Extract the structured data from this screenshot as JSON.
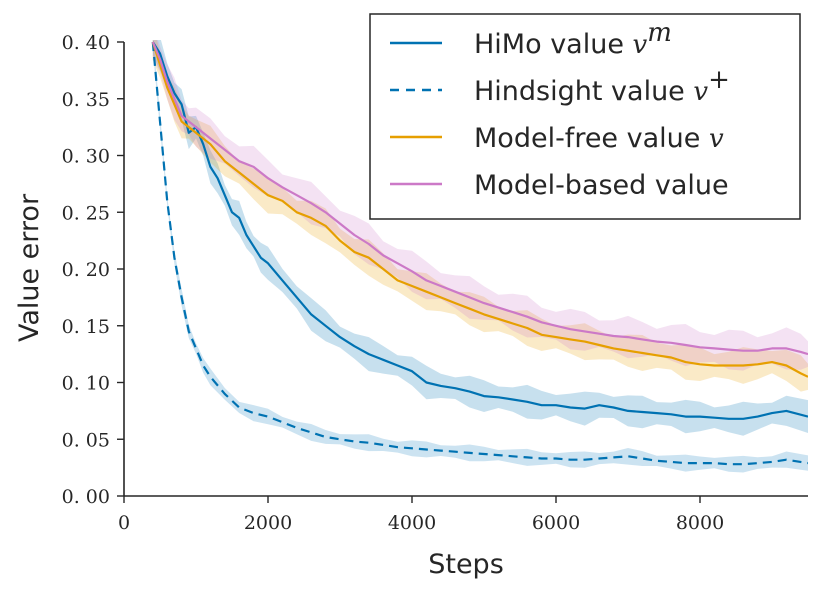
{
  "chart_data": {
    "type": "line",
    "title": "",
    "xlabel": "Steps",
    "ylabel": "Value error",
    "xlim": [
      0,
      9500
    ],
    "ylim": [
      0.0,
      0.4
    ],
    "xticks": [
      0,
      2000,
      4000,
      6000,
      8000
    ],
    "xtick_labels": [
      "0",
      "2000",
      "4000",
      "6000",
      "8000"
    ],
    "yticks": [
      0.0,
      0.05,
      0.1,
      0.15,
      0.2,
      0.25,
      0.3,
      0.35,
      0.4
    ],
    "ytick_labels": [
      "0. 00",
      "0. 05",
      "0. 10",
      "0. 15",
      "0. 20",
      "0. 25",
      "0. 30",
      "0. 35",
      "0. 40"
    ],
    "grid": false,
    "legend_position": "top-right",
    "series": [
      {
        "name": "HiMo value",
        "symbol": "v",
        "sup": "m",
        "color": "#0072b2",
        "dash": "solid",
        "band": 0.012,
        "x": [
          400,
          500,
          600,
          700,
          800,
          900,
          1000,
          1100,
          1200,
          1300,
          1400,
          1500,
          1600,
          1700,
          1800,
          1900,
          2000,
          2200,
          2400,
          2600,
          2800,
          3000,
          3200,
          3400,
          3600,
          3800,
          4000,
          4200,
          4400,
          4600,
          4800,
          5000,
          5200,
          5400,
          5600,
          5800,
          6000,
          6200,
          6400,
          6600,
          6800,
          7000,
          7200,
          7400,
          7600,
          7800,
          8000,
          8200,
          8400,
          8600,
          8800,
          9000,
          9200,
          9500
        ],
        "y": [
          0.4,
          0.39,
          0.37,
          0.355,
          0.345,
          0.32,
          0.325,
          0.31,
          0.29,
          0.28,
          0.265,
          0.25,
          0.245,
          0.23,
          0.22,
          0.21,
          0.205,
          0.19,
          0.175,
          0.16,
          0.15,
          0.14,
          0.132,
          0.125,
          0.12,
          0.115,
          0.11,
          0.1,
          0.097,
          0.095,
          0.092,
          0.088,
          0.087,
          0.085,
          0.083,
          0.08,
          0.08,
          0.078,
          0.077,
          0.08,
          0.078,
          0.075,
          0.074,
          0.073,
          0.072,
          0.07,
          0.07,
          0.069,
          0.068,
          0.068,
          0.07,
          0.073,
          0.075,
          0.07
        ]
      },
      {
        "name": "Hindsight value",
        "symbol": "v",
        "sup": "+",
        "color": "#0072b2",
        "dash": "dashed",
        "band": 0.006,
        "x": [
          400,
          500,
          600,
          700,
          800,
          900,
          1000,
          1100,
          1200,
          1400,
          1600,
          1800,
          2000,
          2200,
          2400,
          2600,
          2800,
          3000,
          3200,
          3400,
          3600,
          3800,
          4000,
          4200,
          4400,
          4600,
          4800,
          5000,
          5200,
          5400,
          5600,
          5800,
          6000,
          6200,
          6400,
          6600,
          6800,
          7000,
          7200,
          7400,
          7600,
          7800,
          8000,
          8200,
          8400,
          8600,
          8800,
          9000,
          9200,
          9500
        ],
        "y": [
          0.4,
          0.33,
          0.26,
          0.21,
          0.175,
          0.145,
          0.13,
          0.115,
          0.105,
          0.09,
          0.078,
          0.073,
          0.07,
          0.065,
          0.06,
          0.056,
          0.052,
          0.05,
          0.048,
          0.047,
          0.045,
          0.043,
          0.042,
          0.041,
          0.04,
          0.039,
          0.038,
          0.037,
          0.036,
          0.035,
          0.034,
          0.033,
          0.033,
          0.032,
          0.032,
          0.033,
          0.034,
          0.035,
          0.033,
          0.031,
          0.03,
          0.029,
          0.029,
          0.029,
          0.028,
          0.028,
          0.029,
          0.03,
          0.032,
          0.029
        ]
      },
      {
        "name": "Model-free value",
        "symbol": "v",
        "sup": "",
        "color": "#e69f00",
        "dash": "solid",
        "band": 0.013,
        "x": [
          400,
          500,
          600,
          700,
          800,
          900,
          1000,
          1200,
          1400,
          1600,
          1800,
          2000,
          2200,
          2400,
          2600,
          2800,
          3000,
          3200,
          3400,
          3600,
          3800,
          4000,
          4200,
          4400,
          4600,
          4800,
          5000,
          5200,
          5400,
          5600,
          5800,
          6000,
          6200,
          6400,
          6600,
          6800,
          7000,
          7200,
          7400,
          7600,
          7800,
          8000,
          8200,
          8400,
          8600,
          8800,
          9000,
          9200,
          9400,
          9500
        ],
        "y": [
          0.4,
          0.38,
          0.36,
          0.345,
          0.33,
          0.325,
          0.32,
          0.31,
          0.295,
          0.285,
          0.275,
          0.265,
          0.26,
          0.25,
          0.245,
          0.238,
          0.225,
          0.215,
          0.21,
          0.2,
          0.19,
          0.185,
          0.18,
          0.175,
          0.17,
          0.165,
          0.16,
          0.156,
          0.152,
          0.148,
          0.142,
          0.14,
          0.138,
          0.136,
          0.133,
          0.13,
          0.128,
          0.126,
          0.124,
          0.122,
          0.118,
          0.116,
          0.115,
          0.115,
          0.115,
          0.116,
          0.118,
          0.115,
          0.108,
          0.105
        ]
      },
      {
        "name": "Model-based value",
        "symbol": "",
        "sup": "",
        "color": "#cc79c7",
        "dash": "solid",
        "band": 0.015,
        "x": [
          400,
          500,
          600,
          700,
          800,
          900,
          1000,
          1200,
          1400,
          1600,
          1800,
          2000,
          2200,
          2400,
          2600,
          2800,
          3000,
          3200,
          3400,
          3600,
          3800,
          4000,
          4200,
          4400,
          4600,
          4800,
          5000,
          5200,
          5400,
          5600,
          5800,
          6000,
          6200,
          6400,
          6600,
          6800,
          7000,
          7200,
          7400,
          7600,
          7800,
          8000,
          8200,
          8400,
          8600,
          8800,
          9000,
          9200,
          9400,
          9500
        ],
        "y": [
          0.4,
          0.385,
          0.365,
          0.35,
          0.335,
          0.33,
          0.325,
          0.315,
          0.305,
          0.295,
          0.29,
          0.28,
          0.272,
          0.265,
          0.258,
          0.25,
          0.24,
          0.23,
          0.222,
          0.212,
          0.205,
          0.198,
          0.19,
          0.185,
          0.18,
          0.175,
          0.17,
          0.166,
          0.162,
          0.158,
          0.153,
          0.15,
          0.147,
          0.145,
          0.143,
          0.141,
          0.14,
          0.138,
          0.136,
          0.135,
          0.133,
          0.131,
          0.13,
          0.129,
          0.128,
          0.128,
          0.13,
          0.13,
          0.127,
          0.125
        ]
      }
    ]
  }
}
